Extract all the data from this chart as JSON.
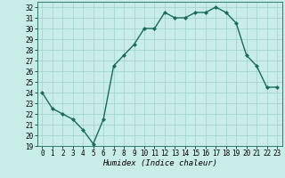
{
  "title": "",
  "xlabel": "Humidex (Indice chaleur)",
  "x": [
    0,
    1,
    2,
    3,
    4,
    5,
    6,
    7,
    8,
    9,
    10,
    11,
    12,
    13,
    14,
    15,
    16,
    17,
    18,
    19,
    20,
    21,
    22,
    23
  ],
  "y": [
    24.0,
    22.5,
    22.0,
    21.5,
    20.5,
    19.2,
    21.5,
    26.5,
    27.5,
    28.5,
    30.0,
    30.0,
    31.5,
    31.0,
    31.0,
    31.5,
    31.5,
    32.0,
    31.5,
    30.5,
    27.5,
    26.5,
    24.5,
    24.5
  ],
  "line_color": "#1a6b5a",
  "bg_color": "#c8ece8",
  "grid_color": "#a0d0cc",
  "ylim": [
    19,
    32.5
  ],
  "xlim": [
    -0.5,
    23.5
  ],
  "yticks": [
    19,
    20,
    21,
    22,
    23,
    24,
    25,
    26,
    27,
    28,
    29,
    30,
    31,
    32
  ],
  "xticks": [
    0,
    1,
    2,
    3,
    4,
    5,
    6,
    7,
    8,
    9,
    10,
    11,
    12,
    13,
    14,
    15,
    16,
    17,
    18,
    19,
    20,
    21,
    22,
    23
  ],
  "marker": "D",
  "markersize": 2.0,
  "linewidth": 1.0,
  "tick_labelsize": 5.5,
  "xlabel_fontsize": 6.5
}
